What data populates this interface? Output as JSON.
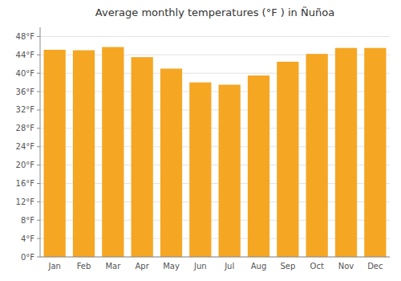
{
  "chart_data": {
    "type": "bar",
    "title": "Average monthly temperatures (°F ) in Ñuñoa",
    "categories": [
      "Jan",
      "Feb",
      "Mar",
      "Apr",
      "May",
      "Jun",
      "Jul",
      "Aug",
      "Sep",
      "Oct",
      "Nov",
      "Dec"
    ],
    "values": [
      45.1,
      45.0,
      45.7,
      43.5,
      41.0,
      38.0,
      37.5,
      39.5,
      42.5,
      44.2,
      45.5,
      45.5
    ],
    "color": "#F5A623",
    "ylim": [
      0,
      50
    ],
    "yticks": [
      {
        "value": 0,
        "label": "0°F"
      },
      {
        "value": 4,
        "label": "4°F"
      },
      {
        "value": 8,
        "label": "8°F"
      },
      {
        "value": 12,
        "label": "12°F"
      },
      {
        "value": 16,
        "label": "16°F"
      },
      {
        "value": 20,
        "label": "20°F"
      },
      {
        "value": 24,
        "label": "24°F"
      },
      {
        "value": 28,
        "label": "28°F"
      },
      {
        "value": 32,
        "label": "32°F"
      },
      {
        "value": 36,
        "label": "36°F"
      },
      {
        "value": 40,
        "label": "40°F"
      },
      {
        "value": 44,
        "label": "44°F"
      },
      {
        "value": 48,
        "label": "48°F"
      }
    ],
    "grid": true
  }
}
